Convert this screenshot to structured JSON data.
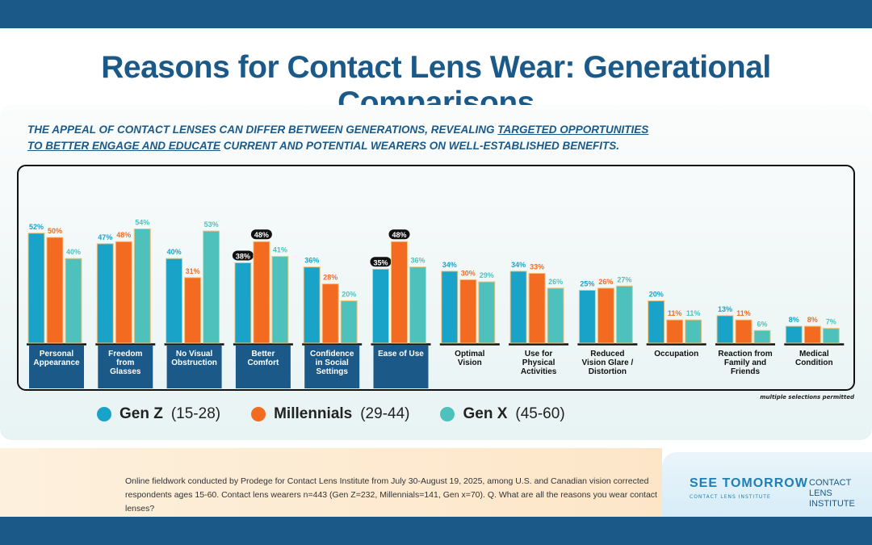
{
  "title": "Reasons for Contact Lens Wear: Generational Comparisons",
  "subtitle": {
    "part1": "THE APPEAL OF CONTACT LENSES CAN DIFFER BETWEEN GENERATIONS, REVEALING ",
    "underlined1": "TARGETED OPPORTUNITIES",
    "underlined2": "TO BETTER ENGAGE AND EDUCATE",
    "part2": " CURRENT AND POTENTIAL WEARERS ON WELL-ESTABLISHED BENEFITS."
  },
  "note": "multiple selections permitted",
  "footer": "Online fieldwork conducted by Prodege for Contact Lens Institute from July 30-August 19, 2025, among U.S. and Canadian vision corrected respondents ages 15-60. Contact lens wearers n=443 (Gen Z=232, Millennials=141, Gen x=70). Q. What are all the reasons you wear contact lenses?",
  "logos": {
    "see_tomorrow": "SEE TOMORROW",
    "see_tomorrow_sub": "CONTACT LENS INSTITUTE",
    "cli": "CONTACT LENS INSTITUTE"
  },
  "colors": {
    "gen_z": "#1aa3c9",
    "millennials": "#f26b21",
    "gen_x": "#4fc1bc",
    "label_box": "#1b5a88",
    "highlight": "#111111"
  },
  "chart_data": {
    "type": "bar",
    "categories": [
      "Personal Appearance",
      "Freedom from Glasses",
      "No Visual Obstruction",
      "Better Comfort",
      "Confidence in Social Settings",
      "Ease of Use",
      "Optimal Vision",
      "Use for Physical Activities",
      "Reduced Vision Glare / Distortion",
      "Occupation",
      "Reaction from Family and Friends",
      "Medical Condition"
    ],
    "category_lines": [
      [
        "Personal",
        "Appearance"
      ],
      [
        "Freedom",
        "from",
        "Glasses"
      ],
      [
        "No Visual",
        "Obstruction"
      ],
      [
        "Better",
        "Comfort"
      ],
      [
        "Confidence",
        "in Social",
        "Settings"
      ],
      [
        "Ease of Use"
      ],
      [
        "Optimal",
        "Vision"
      ],
      [
        "Use for",
        "Physical",
        "Activities"
      ],
      [
        "Reduced",
        "Vision Glare /",
        "Distortion"
      ],
      [
        "Occupation"
      ],
      [
        "Reaction from",
        "Family and",
        "Friends"
      ],
      [
        "Medical",
        "Condition"
      ]
    ],
    "highlighted_categories": 6,
    "series": [
      {
        "name": "Gen Z",
        "range": "(15-28)",
        "values": [
          52,
          47,
          40,
          38,
          36,
          35,
          34,
          34,
          25,
          20,
          13,
          8
        ]
      },
      {
        "name": "Millennials",
        "range": "(29-44)",
        "values": [
          50,
          48,
          31,
          48,
          28,
          48,
          30,
          33,
          26,
          11,
          11,
          8
        ]
      },
      {
        "name": "Gen X",
        "range": "(45-60)",
        "values": [
          40,
          54,
          53,
          41,
          20,
          36,
          29,
          26,
          27,
          11,
          6,
          7
        ]
      }
    ],
    "highlighted_labels": [
      [
        3,
        0
      ],
      [
        3,
        1
      ],
      [
        5,
        0
      ],
      [
        5,
        1
      ]
    ],
    "unit": "%",
    "grid": false,
    "legend": "bottom"
  }
}
